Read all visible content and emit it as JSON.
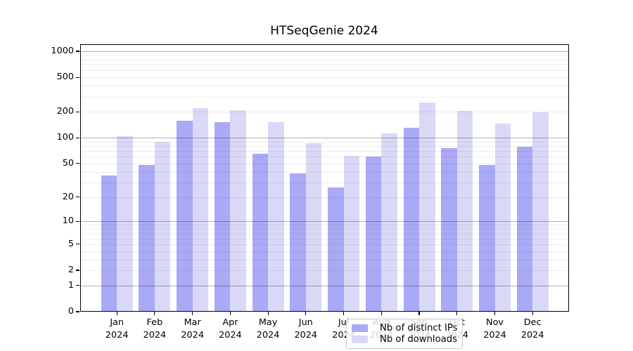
{
  "chart_data": {
    "type": "bar",
    "title": "HTSeqGenie 2024",
    "categories": [
      "Jan",
      "Feb",
      "Mar",
      "Apr",
      "May",
      "Jun",
      "Jul",
      "Aug",
      "Sep",
      "Oct",
      "Nov",
      "Dec"
    ],
    "category_year": "2024",
    "series": [
      {
        "name": "Nb of distinct IPs",
        "color": "#a9a9f5",
        "values": [
          36,
          48,
          158,
          152,
          65,
          38,
          26,
          60,
          130,
          75,
          48,
          78
        ]
      },
      {
        "name": "Nb of downloads",
        "color": "#d9d9f7",
        "values": [
          105,
          89,
          222,
          209,
          151,
          86,
          62,
          112,
          258,
          205,
          145,
          197
        ]
      }
    ],
    "y_axis": {
      "scale": "log10(1+y)",
      "ticks": [
        1000,
        500,
        200,
        100,
        50,
        20,
        10,
        5,
        2,
        1,
        0
      ],
      "range": [
        0,
        1218
      ],
      "major_gridlines": [
        1,
        10,
        100,
        1000
      ],
      "minor_gridline_multipliers": [
        2,
        3,
        4,
        5,
        6,
        7,
        8,
        9
      ]
    },
    "legend_position": "bottom-center",
    "grid": true
  },
  "colors": {
    "background": "#ffffff",
    "axis": "#000000",
    "bar_ips": "#a9a9f5",
    "bar_downloads": "#d9d9f7"
  }
}
